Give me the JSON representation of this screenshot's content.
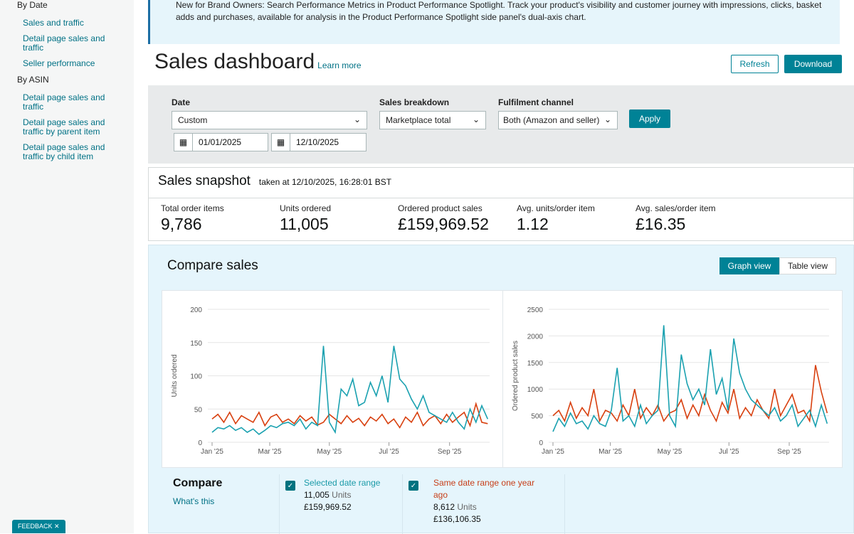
{
  "sidebar": {
    "by_date": "By Date",
    "date_links": [
      "Sales and traffic",
      "Detail page sales and traffic",
      "Seller performance"
    ],
    "by_asin": "By ASIN",
    "asin_links": [
      "Detail page sales and traffic",
      "Detail page sales and traffic by parent item",
      "Detail page sales and traffic by child item"
    ],
    "feedback": "FEEDBACK ✕"
  },
  "banner": {
    "text": "New for Brand Owners: Search Performance Metrics in Product Performance Spotlight. Track your product's visibility and customer journey with impressions, clicks, basket adds and purchases, available for analysis in the Product Performance Spotlight side panel's dual-axis chart."
  },
  "header": {
    "title": "Sales dashboard",
    "learn_more": "Learn more",
    "refresh": "Refresh",
    "download": "Download"
  },
  "filters": {
    "date_label": "Date",
    "date_value": "Custom",
    "start_date": "01/01/2025",
    "end_date": "12/10/2025",
    "breakdown_label": "Sales breakdown",
    "breakdown_value": "Marketplace total",
    "fulfilment_label": "Fulfilment channel",
    "fulfilment_value": "Both (Amazon and seller)",
    "apply": "Apply"
  },
  "snapshot": {
    "title": "Sales snapshot",
    "taken": "taken at 12/10/2025, 16:28:01 BST",
    "metrics": [
      {
        "label": "Total order items",
        "value": "9,786"
      },
      {
        "label": "Units ordered",
        "value": "11,005"
      },
      {
        "label": "Ordered product sales",
        "value": "£159,969.52"
      },
      {
        "label": "Avg. units/order item",
        "value": "1.12"
      },
      {
        "label": "Avg. sales/order item",
        "value": "£16.35"
      }
    ]
  },
  "compare": {
    "title": "Compare sales",
    "graph_view": "Graph view",
    "table_view": "Table view",
    "compare_label": "Compare",
    "whats_this": "What's this",
    "selected": {
      "label": "Selected date range",
      "units": "11,005",
      "units_word": "Units",
      "sales": "£159,969.52"
    },
    "previous": {
      "label": "Same date range one year ago",
      "units": "8,612",
      "units_word": "Units",
      "sales": "£136,106.35"
    }
  },
  "colors": {
    "current": "#1aa1b0",
    "previous": "#d8400f",
    "accent": "#008296"
  },
  "chart_data": [
    {
      "type": "line",
      "ylabel": "Units ordered",
      "ylim": [
        0,
        200
      ],
      "yticks": [
        "0",
        "50",
        "100",
        "150",
        "200"
      ],
      "xticks": [
        {
          "day": 0,
          "label": "Jan '25"
        },
        {
          "day": 59,
          "label": "Mar '25"
        },
        {
          "day": 120,
          "label": "May '25"
        },
        {
          "day": 181,
          "label": "Jul '25"
        },
        {
          "day": 243,
          "label": "Sep '25"
        }
      ],
      "x_step_days": 6,
      "xmax_day": 284,
      "series": [
        {
          "name": "Selected date range",
          "values": [
            15,
            22,
            20,
            25,
            18,
            22,
            15,
            20,
            12,
            18,
            25,
            22,
            28,
            30,
            25,
            35,
            20,
            30,
            25,
            145,
            30,
            15,
            80,
            70,
            95,
            55,
            60,
            90,
            70,
            100,
            60,
            145,
            95,
            85,
            65,
            50,
            70,
            45,
            40,
            35,
            30,
            45,
            30,
            20,
            50,
            30,
            55,
            35
          ]
        },
        {
          "name": "Same date range one year ago",
          "values": [
            35,
            42,
            30,
            45,
            28,
            40,
            35,
            30,
            45,
            25,
            38,
            42,
            30,
            35,
            28,
            40,
            32,
            38,
            26,
            30,
            42,
            35,
            28,
            40,
            30,
            36,
            25,
            38,
            32,
            42,
            28,
            35,
            22,
            38,
            30,
            45,
            25,
            35,
            40,
            28,
            42,
            30,
            38,
            45,
            25,
            58,
            30,
            28
          ]
        }
      ]
    },
    {
      "type": "line",
      "ylabel": "Ordered product sales",
      "ylim": [
        0,
        2500
      ],
      "yticks": [
        "0",
        "500",
        "1000",
        "1500",
        "2000",
        "2500"
      ],
      "xticks": [
        {
          "day": 0,
          "label": "Jan '25"
        },
        {
          "day": 59,
          "label": "Mar '25"
        },
        {
          "day": 120,
          "label": "May '25"
        },
        {
          "day": 181,
          "label": "Jul '25"
        },
        {
          "day": 243,
          "label": "Sep '25"
        }
      ],
      "x_step_days": 6,
      "xmax_day": 284,
      "series": [
        {
          "name": "Selected date range",
          "values": [
            200,
            450,
            300,
            550,
            350,
            400,
            250,
            500,
            350,
            300,
            600,
            1400,
            400,
            500,
            300,
            700,
            350,
            500,
            600,
            2200,
            500,
            300,
            1650,
            1100,
            800,
            1000,
            700,
            1750,
            900,
            1200,
            600,
            1950,
            1300,
            1000,
            800,
            700,
            600,
            500,
            650,
            400,
            500,
            700,
            300,
            450,
            600,
            300,
            700,
            350
          ]
        },
        {
          "name": "Same date range one year ago",
          "values": [
            500,
            600,
            400,
            750,
            450,
            650,
            500,
            1000,
            400,
            600,
            550,
            400,
            700,
            500,
            1000,
            450,
            650,
            500,
            700,
            400,
            550,
            600,
            800,
            450,
            700,
            500,
            900,
            600,
            400,
            750,
            550,
            1000,
            450,
            650,
            500,
            800,
            600,
            450,
            1000,
            500,
            700,
            900,
            550,
            600,
            400,
            1450,
            950,
            550
          ]
        }
      ]
    }
  ]
}
